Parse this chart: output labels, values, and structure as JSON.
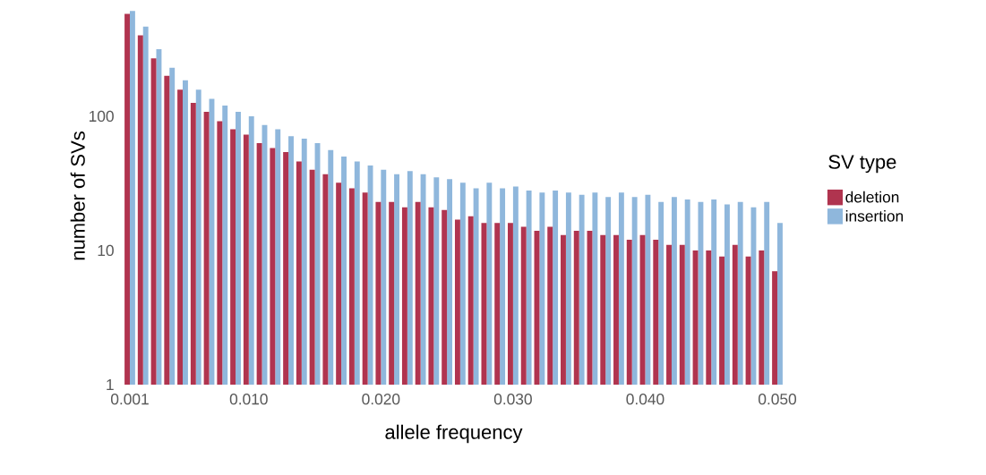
{
  "chart_data": {
    "type": "bar",
    "xlabel": "allele frequency",
    "ylabel": "number of SVs",
    "legend_title": "SV type",
    "legend": "right",
    "log": "y",
    "grid": false,
    "x": [
      0.001,
      0.002,
      0.003,
      0.004,
      0.005,
      0.006,
      0.007,
      0.008,
      0.009,
      0.01,
      0.011,
      0.012,
      0.013,
      0.014,
      0.015,
      0.016,
      0.017,
      0.018,
      0.019,
      0.02,
      0.021,
      0.022,
      0.023,
      0.024,
      0.025,
      0.026,
      0.027,
      0.028,
      0.029,
      0.03,
      0.031,
      0.032,
      0.033,
      0.034,
      0.035,
      0.036,
      0.037,
      0.038,
      0.039,
      0.04,
      0.041,
      0.042,
      0.043,
      0.044,
      0.045,
      0.046,
      0.047,
      0.048,
      0.049,
      0.05
    ],
    "series": [
      {
        "name": "deletion",
        "color": "#b0344f",
        "values": [
          580,
          400,
          270,
          200,
          158,
          126,
          108,
          92,
          80,
          73,
          63,
          58,
          54,
          46,
          40,
          37,
          32,
          29,
          27,
          23,
          23,
          21,
          23,
          21,
          20,
          17,
          18,
          16,
          16,
          16,
          15,
          14,
          15,
          13,
          14,
          14,
          13,
          13,
          12,
          13,
          12,
          11,
          11,
          10,
          10,
          9,
          11,
          9,
          10,
          7
        ]
      },
      {
        "name": "insertion",
        "color": "#8fb7dc",
        "values": [
          610,
          465,
          316,
          230,
          185,
          158,
          135,
          120,
          108,
          100,
          86,
          80,
          71,
          68,
          63,
          56,
          50,
          46,
          43,
          40,
          37,
          39,
          37,
          35,
          34,
          32,
          29,
          32,
          29,
          30,
          28,
          27,
          28,
          27,
          26,
          27,
          25,
          27,
          25,
          26,
          23,
          25,
          24,
          23,
          24,
          22,
          23,
          21,
          23,
          16
        ]
      }
    ],
    "xlim": [
      0.0005,
      0.0505
    ],
    "ylim": [
      1,
      650
    ],
    "xticks": [
      {
        "value": 0.001,
        "label": "0.001"
      },
      {
        "value": 0.01,
        "label": "0.010"
      },
      {
        "value": 0.02,
        "label": "0.020"
      },
      {
        "value": 0.03,
        "label": "0.030"
      },
      {
        "value": 0.04,
        "label": "0.040"
      },
      {
        "value": 0.05,
        "label": "0.050"
      }
    ],
    "yticks": [
      1,
      10,
      100
    ]
  }
}
